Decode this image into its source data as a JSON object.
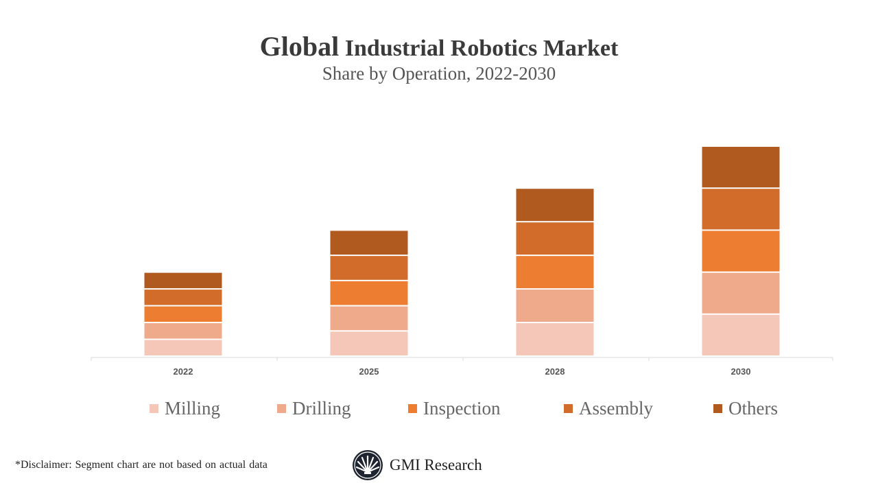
{
  "title_first": "Global",
  "title_rest": "Industrial Robotics Market",
  "subtitle": "Share by Operation, 2022-2030",
  "chart_data": {
    "type": "bar",
    "stacked": true,
    "title": "Global Industrial Robotics Market",
    "subtitle": "Share by Operation, 2022-2030",
    "categories": [
      "2022",
      "2025",
      "2028",
      "2030"
    ],
    "series": [
      {
        "name": "Milling",
        "color": "#F4C7B8",
        "values": [
          4,
          6,
          8,
          10
        ]
      },
      {
        "name": "Drilling",
        "color": "#EFA98B",
        "values": [
          4,
          6,
          8,
          10
        ]
      },
      {
        "name": "Inspection",
        "color": "#ED7D31",
        "values": [
          4,
          6,
          8,
          10
        ]
      },
      {
        "name": "Assembly",
        "color": "#D26C2B",
        "values": [
          4,
          6,
          8,
          10
        ]
      },
      {
        "name": "Others",
        "color": "#B05A20",
        "values": [
          4,
          6,
          8,
          10
        ]
      }
    ],
    "y_axis_shown": false,
    "grid": false,
    "legend_position": "bottom"
  },
  "disclaimer": "*Disclaimer:   Segment chart are not based on actual data",
  "logo_text": "GMI Research"
}
